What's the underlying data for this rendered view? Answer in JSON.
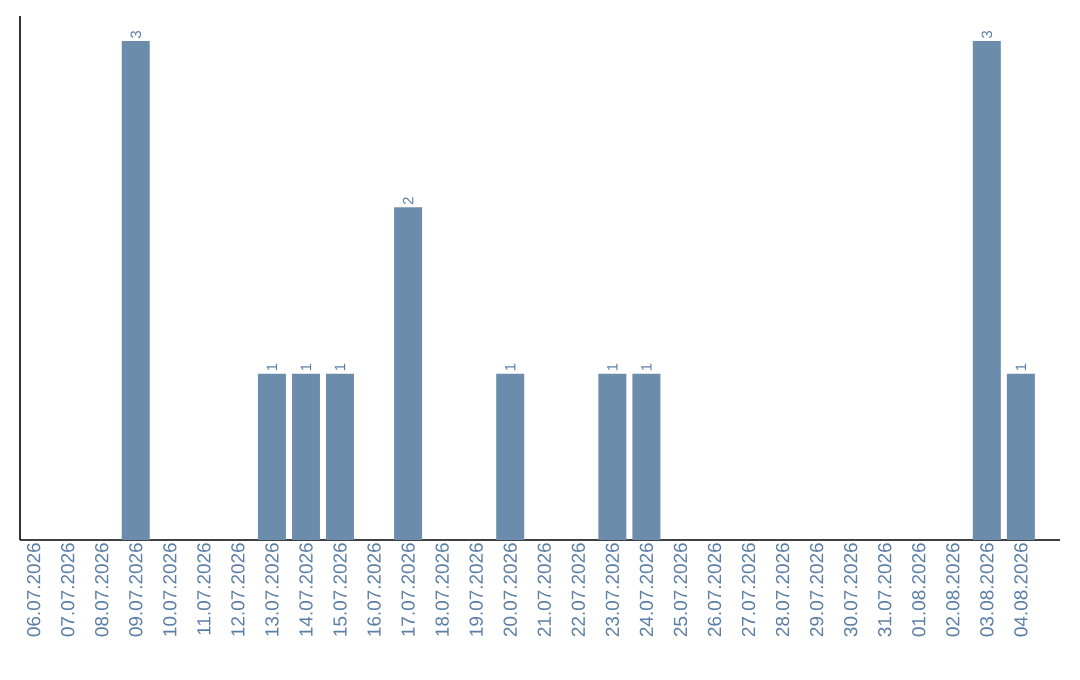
{
  "chart_data": {
    "type": "bar",
    "color": "#6b8cab",
    "categories": [
      "06.07.2026",
      "07.07.2026",
      "08.07.2026",
      "09.07.2026",
      "10.07.2026",
      "11.07.2026",
      "12.07.2026",
      "13.07.2026",
      "14.07.2026",
      "15.07.2026",
      "16.07.2026",
      "17.07.2026",
      "18.07.2026",
      "19.07.2026",
      "20.07.2026",
      "21.07.2026",
      "22.07.2026",
      "23.07.2026",
      "24.07.2026",
      "25.07.2026",
      "26.07.2026",
      "27.07.2026",
      "28.07.2026",
      "29.07.2026",
      "30.07.2026",
      "31.07.2026",
      "01.08.2026",
      "02.08.2026",
      "03.08.2026",
      "04.08.2026"
    ],
    "values": [
      0,
      0,
      0,
      3,
      0,
      0,
      0,
      1,
      1,
      1,
      0,
      2,
      0,
      0,
      1,
      0,
      0,
      1,
      1,
      0,
      0,
      0,
      0,
      0,
      0,
      0,
      0,
      0,
      3,
      1
    ],
    "value_labels": [
      null,
      null,
      null,
      "3",
      null,
      null,
      null,
      "1",
      "1",
      "1",
      null,
      "2",
      null,
      null,
      "1",
      null,
      null,
      "1",
      "1",
      null,
      null,
      null,
      null,
      null,
      null,
      null,
      null,
      null,
      "3",
      "1"
    ],
    "tick_labels": "x",
    "grid": false
  }
}
